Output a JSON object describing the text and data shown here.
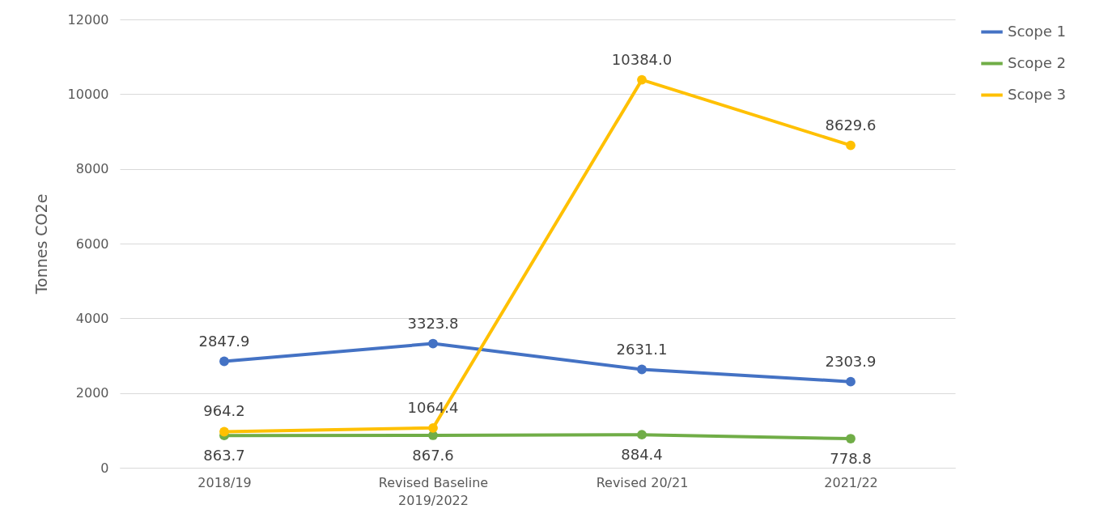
{
  "chart_data": {
    "type": "line",
    "ylabel": "Tonnes CO2e",
    "categories": [
      "2018/19",
      "Revised Baseline 2019/2022",
      "Revised 20/21",
      "2021/22"
    ],
    "series": [
      {
        "name": "Scope 1",
        "color": "#4472c4",
        "values": [
          2847.9,
          3323.8,
          2631.1,
          2303.9
        ],
        "value_labels": [
          "2847.9",
          "3323.8",
          "2631.1",
          "2303.9"
        ]
      },
      {
        "name": "Scope 2",
        "color": "#70ad47",
        "values": [
          863.7,
          867.6,
          884.4,
          778.8
        ],
        "value_labels": [
          "863.7",
          "867.6",
          "884.4",
          "778.8"
        ]
      },
      {
        "name": "Scope 3",
        "color": "#ffc000",
        "values": [
          964.2,
          1064.4,
          10384,
          8629.6
        ],
        "value_labels": [
          "964.2",
          "1064.4",
          "10384.0",
          "8629.6"
        ]
      }
    ],
    "ylim": [
      0,
      12000
    ],
    "yticks": [
      0,
      2000,
      4000,
      6000,
      8000,
      10000,
      12000
    ],
    "grid": "y",
    "legend": "right",
    "marker": "circle",
    "line_style": "solid"
  }
}
